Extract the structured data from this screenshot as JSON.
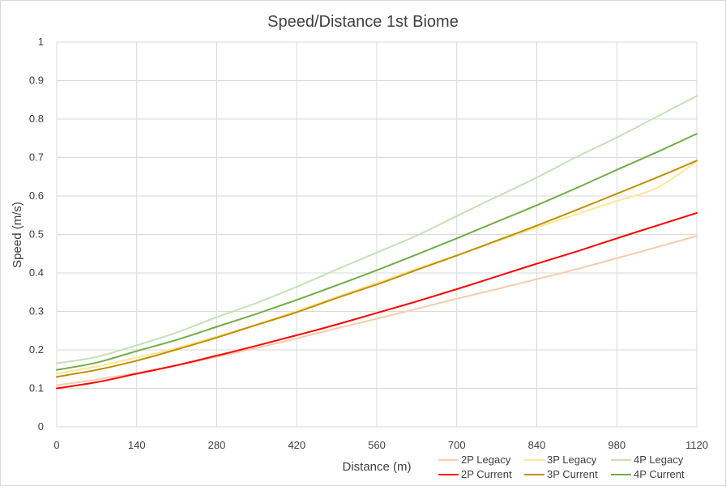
{
  "chart_data": {
    "type": "line",
    "title": "Speed/Distance 1st Biome",
    "xlabel": "Distance (m)",
    "ylabel": "Speed (m/s)",
    "xlim": [
      0,
      1120
    ],
    "ylim": [
      0,
      1
    ],
    "x_ticks": [
      "0",
      "140",
      "280",
      "420",
      "560",
      "700",
      "840",
      "980",
      "1120"
    ],
    "y_ticks": [
      "0",
      "0.1",
      "0.2",
      "0.3",
      "0.4",
      "0.5",
      "0.6",
      "0.7",
      "0.8",
      "0.9",
      "1"
    ],
    "grid": "on",
    "legend_position": "bottom-right",
    "x": [
      0,
      70,
      140,
      210,
      280,
      350,
      420,
      490,
      560,
      630,
      700,
      770,
      840,
      910,
      980,
      1050,
      1120
    ],
    "series": [
      {
        "name": "2P Legacy",
        "color": "#f8cbad",
        "values": [
          0.108,
          0.123,
          0.14,
          0.16,
          0.182,
          0.205,
          0.23,
          0.256,
          0.281,
          0.307,
          0.333,
          0.358,
          0.384,
          0.41,
          0.438,
          0.467,
          0.496
        ]
      },
      {
        "name": "3P Legacy",
        "color": "#ffe699",
        "values": [
          0.138,
          0.157,
          0.18,
          0.205,
          0.235,
          0.266,
          0.301,
          0.338,
          0.374,
          0.411,
          0.446,
          0.482,
          0.518,
          0.553,
          0.587,
          0.621,
          0.69
        ]
      },
      {
        "name": "4P Legacy",
        "color": "#c5e0b4",
        "values": [
          0.165,
          0.182,
          0.212,
          0.245,
          0.285,
          0.322,
          0.364,
          0.409,
          0.453,
          0.497,
          0.548,
          0.598,
          0.648,
          0.702,
          0.752,
          0.806,
          0.86
        ]
      },
      {
        "name": "2P Current",
        "color": "#ff0000",
        "values": [
          0.1,
          0.116,
          0.138,
          0.16,
          0.185,
          0.211,
          0.238,
          0.266,
          0.296,
          0.326,
          0.358,
          0.391,
          0.424,
          0.456,
          0.49,
          0.523,
          0.556
        ]
      },
      {
        "name": "3P Current",
        "color": "#bf9000",
        "values": [
          0.13,
          0.148,
          0.172,
          0.201,
          0.232,
          0.265,
          0.298,
          0.335,
          0.37,
          0.408,
          0.445,
          0.484,
          0.523,
          0.564,
          0.606,
          0.648,
          0.692
        ]
      },
      {
        "name": "4P Current",
        "color": "#70ad47",
        "values": [
          0.148,
          0.167,
          0.197,
          0.226,
          0.26,
          0.294,
          0.33,
          0.368,
          0.407,
          0.448,
          0.49,
          0.533,
          0.576,
          0.621,
          0.668,
          0.714,
          0.762
        ]
      }
    ]
  }
}
